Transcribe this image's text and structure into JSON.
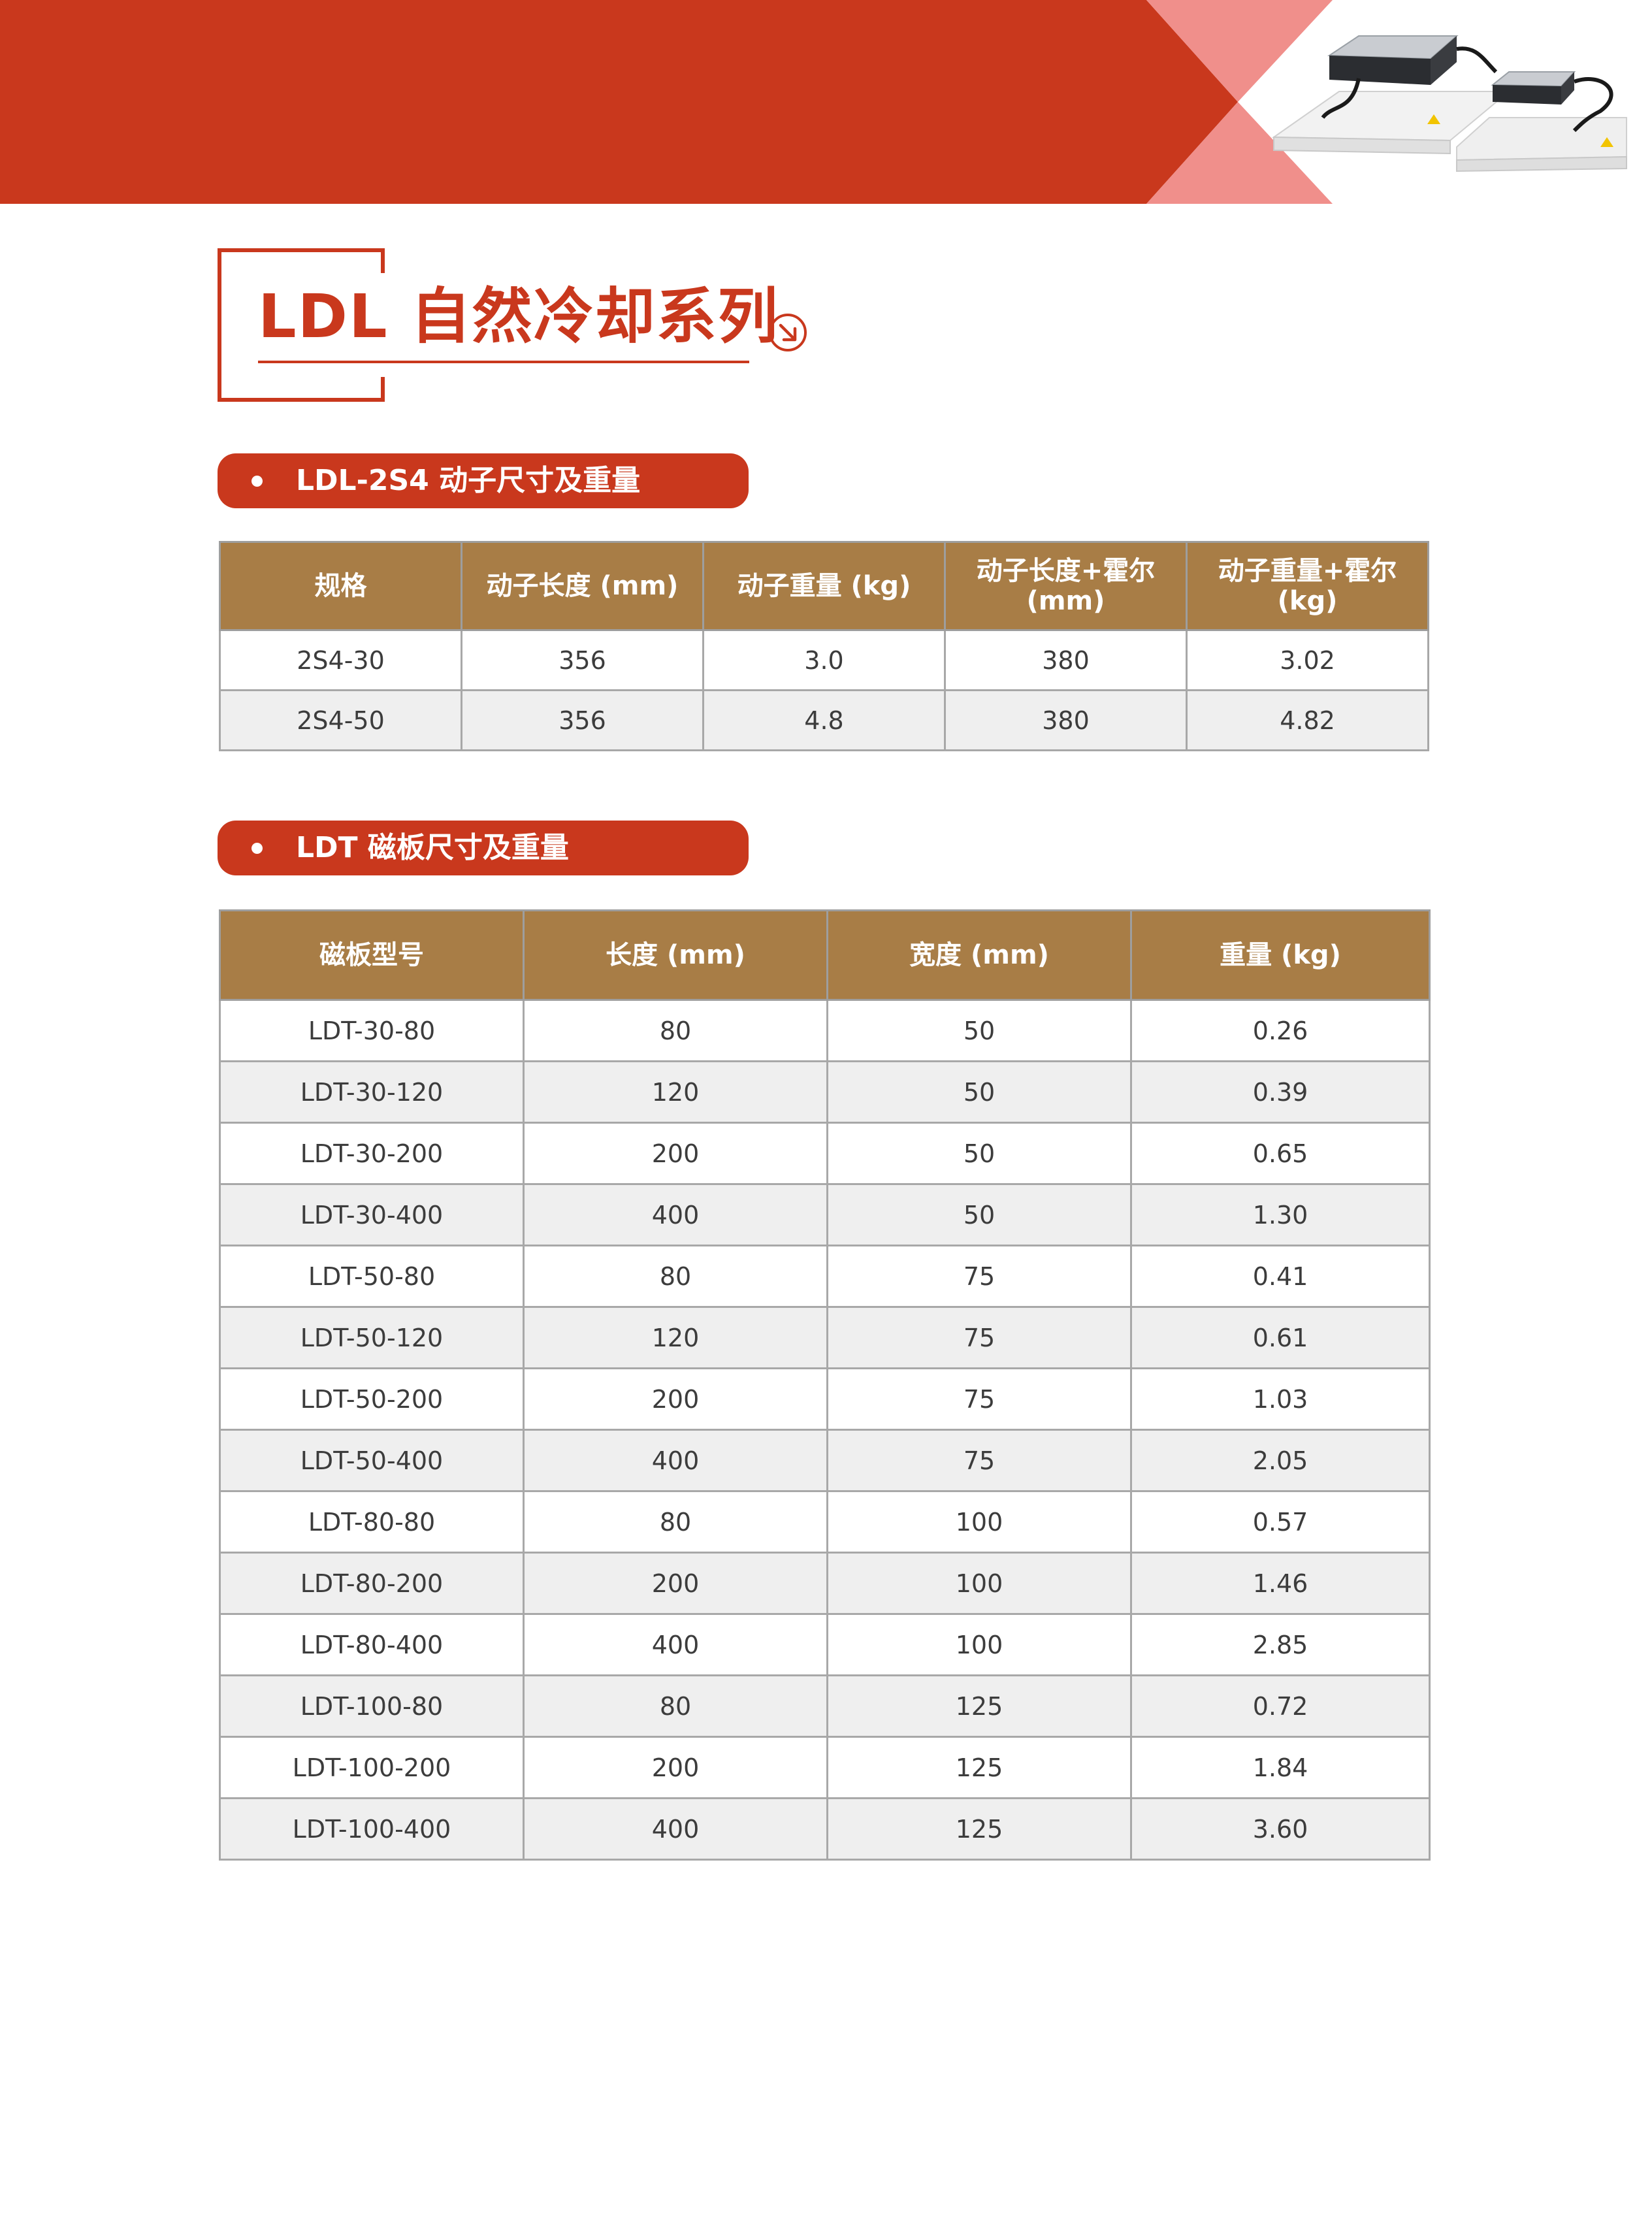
{
  "page": {
    "title": "LDL 自然冷却系列",
    "colors": {
      "accent": "#c9381d",
      "accent_light": "#f08f8b",
      "table_header": "#a87d46",
      "row_alt": "#efefef"
    },
    "icons": {
      "title_arrow": "circle-arrow-down-right-icon"
    }
  },
  "sections": {
    "mover": {
      "heading": "LDL-2S4 动子尺寸及重量",
      "columns": [
        "规格",
        "动子长度 (mm)",
        "动子重量 (kg)",
        "动子长度+霍尔 (mm)",
        "动子重量+霍尔 (kg)"
      ],
      "rows": [
        [
          "2S4-30",
          "356",
          "3.0",
          "380",
          "3.02"
        ],
        [
          "2S4-50",
          "356",
          "4.8",
          "380",
          "4.82"
        ]
      ]
    },
    "magnet": {
      "heading": "LDT 磁板尺寸及重量",
      "columns": [
        "磁板型号",
        "长度 (mm)",
        "宽度 (mm)",
        "重量 (kg)"
      ],
      "rows": [
        [
          "LDT-30-80",
          "80",
          "50",
          "0.26"
        ],
        [
          "LDT-30-120",
          "120",
          "50",
          "0.39"
        ],
        [
          "LDT-30-200",
          "200",
          "50",
          "0.65"
        ],
        [
          "LDT-30-400",
          "400",
          "50",
          "1.30"
        ],
        [
          "LDT-50-80",
          "80",
          "75",
          "0.41"
        ],
        [
          "LDT-50-120",
          "120",
          "75",
          "0.61"
        ],
        [
          "LDT-50-200",
          "200",
          "75",
          "1.03"
        ],
        [
          "LDT-50-400",
          "400",
          "75",
          "2.05"
        ],
        [
          "LDT-80-80",
          "80",
          "100",
          "0.57"
        ],
        [
          "LDT-80-200",
          "200",
          "100",
          "1.46"
        ],
        [
          "LDT-80-400",
          "400",
          "100",
          "2.85"
        ],
        [
          "LDT-100-80",
          "80",
          "125",
          "0.72"
        ],
        [
          "LDT-100-200",
          "200",
          "125",
          "1.84"
        ],
        [
          "LDT-100-400",
          "400",
          "125",
          "3.60"
        ]
      ]
    }
  }
}
